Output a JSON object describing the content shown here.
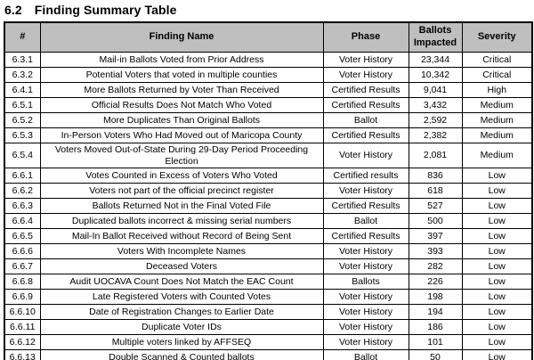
{
  "page": {
    "section_number": "6.2",
    "section_title": "Finding Summary Table"
  },
  "colors": {
    "header_bg": "#bfbfbf",
    "border": "#000000",
    "text": "#000000"
  },
  "table": {
    "columns": [
      "#",
      "Finding Name",
      "Phase",
      "Ballots Impacted",
      "Severity"
    ],
    "rows": [
      {
        "id": "6.3.1",
        "name": "Mail-in Ballots Voted from Prior Address",
        "phase": "Voter History",
        "ballots": "23,344",
        "severity": "Critical"
      },
      {
        "id": "6.3.2",
        "name": "Potential Voters that voted in multiple counties",
        "phase": "Voter History",
        "ballots": "10,342",
        "severity": "Critical"
      },
      {
        "id": "6.4.1",
        "name": "More Ballots Returned by Voter Than Received",
        "phase": "Certified Results",
        "ballots": "9,041",
        "severity": "High"
      },
      {
        "id": "6.5.1",
        "name": "Official Results Does Not Match Who Voted",
        "phase": "Certified Results",
        "ballots": "3,432",
        "severity": "Medium"
      },
      {
        "id": "6.5.2",
        "name": "More Duplicates Than Original Ballots",
        "phase": "Ballot",
        "ballots": "2,592",
        "severity": "Medium"
      },
      {
        "id": "6.5.3",
        "name": "In-Person Voters Who Had Moved out of Maricopa County",
        "phase": "Certified Results",
        "ballots": "2,382",
        "severity": "Medium"
      },
      {
        "id": "6.5.4",
        "name": "Voters Moved Out-of-State During 29-Day Period Proceeding Election",
        "phase": "Voter History",
        "ballots": "2,081",
        "severity": "Medium"
      },
      {
        "id": "6.6.1",
        "name": "Votes Counted in Excess of Voters Who Voted",
        "phase": "Certified results",
        "ballots": "836",
        "severity": "Low"
      },
      {
        "id": "6.6.2",
        "name": "Voters not part of the official precinct register",
        "phase": "Voter History",
        "ballots": "618",
        "severity": "Low"
      },
      {
        "id": "6.6.3",
        "name": "Ballots Returned Not in the Final Voted File",
        "phase": "Certified Results",
        "ballots": "527",
        "severity": "Low"
      },
      {
        "id": "6.6.4",
        "name": "Duplicated ballots incorrect & missing serial numbers",
        "phase": "Ballot",
        "ballots": "500",
        "severity": "Low"
      },
      {
        "id": "6.6.5",
        "name": "Mail-In Ballot Received without Record of Being Sent",
        "phase": "Certified Results",
        "ballots": "397",
        "severity": "Low"
      },
      {
        "id": "6.6.6",
        "name": "Voters With Incomplete Names",
        "phase": "Voter History",
        "ballots": "393",
        "severity": "Low"
      },
      {
        "id": "6.6.7",
        "name": "Deceased Voters",
        "phase": "Voter History",
        "ballots": "282",
        "severity": "Low"
      },
      {
        "id": "6.6.8",
        "name": "Audit UOCAVA Count Does Not Match the EAC Count",
        "phase": "Ballots",
        "ballots": "226",
        "severity": "Low"
      },
      {
        "id": "6.6.9",
        "name": "Late Registered Voters with Counted Votes",
        "phase": "Voter History",
        "ballots": "198",
        "severity": "Low"
      },
      {
        "id": "6.6.10",
        "name": "Date of Registration Changes to Earlier Date",
        "phase": "Voter History",
        "ballots": "194",
        "severity": "Low"
      },
      {
        "id": "6.6.11",
        "name": "Duplicate Voter IDs",
        "phase": "Voter History",
        "ballots": "186",
        "severity": "Low"
      },
      {
        "id": "6.6.12",
        "name": "Multiple voters linked by AFFSEQ",
        "phase": "Voter History",
        "ballots": "101",
        "severity": "Low"
      },
      {
        "id": "6.6.13",
        "name": "Double Scanned & Counted ballots",
        "phase": "Ballot",
        "ballots": "50",
        "severity": "Low"
      }
    ]
  }
}
